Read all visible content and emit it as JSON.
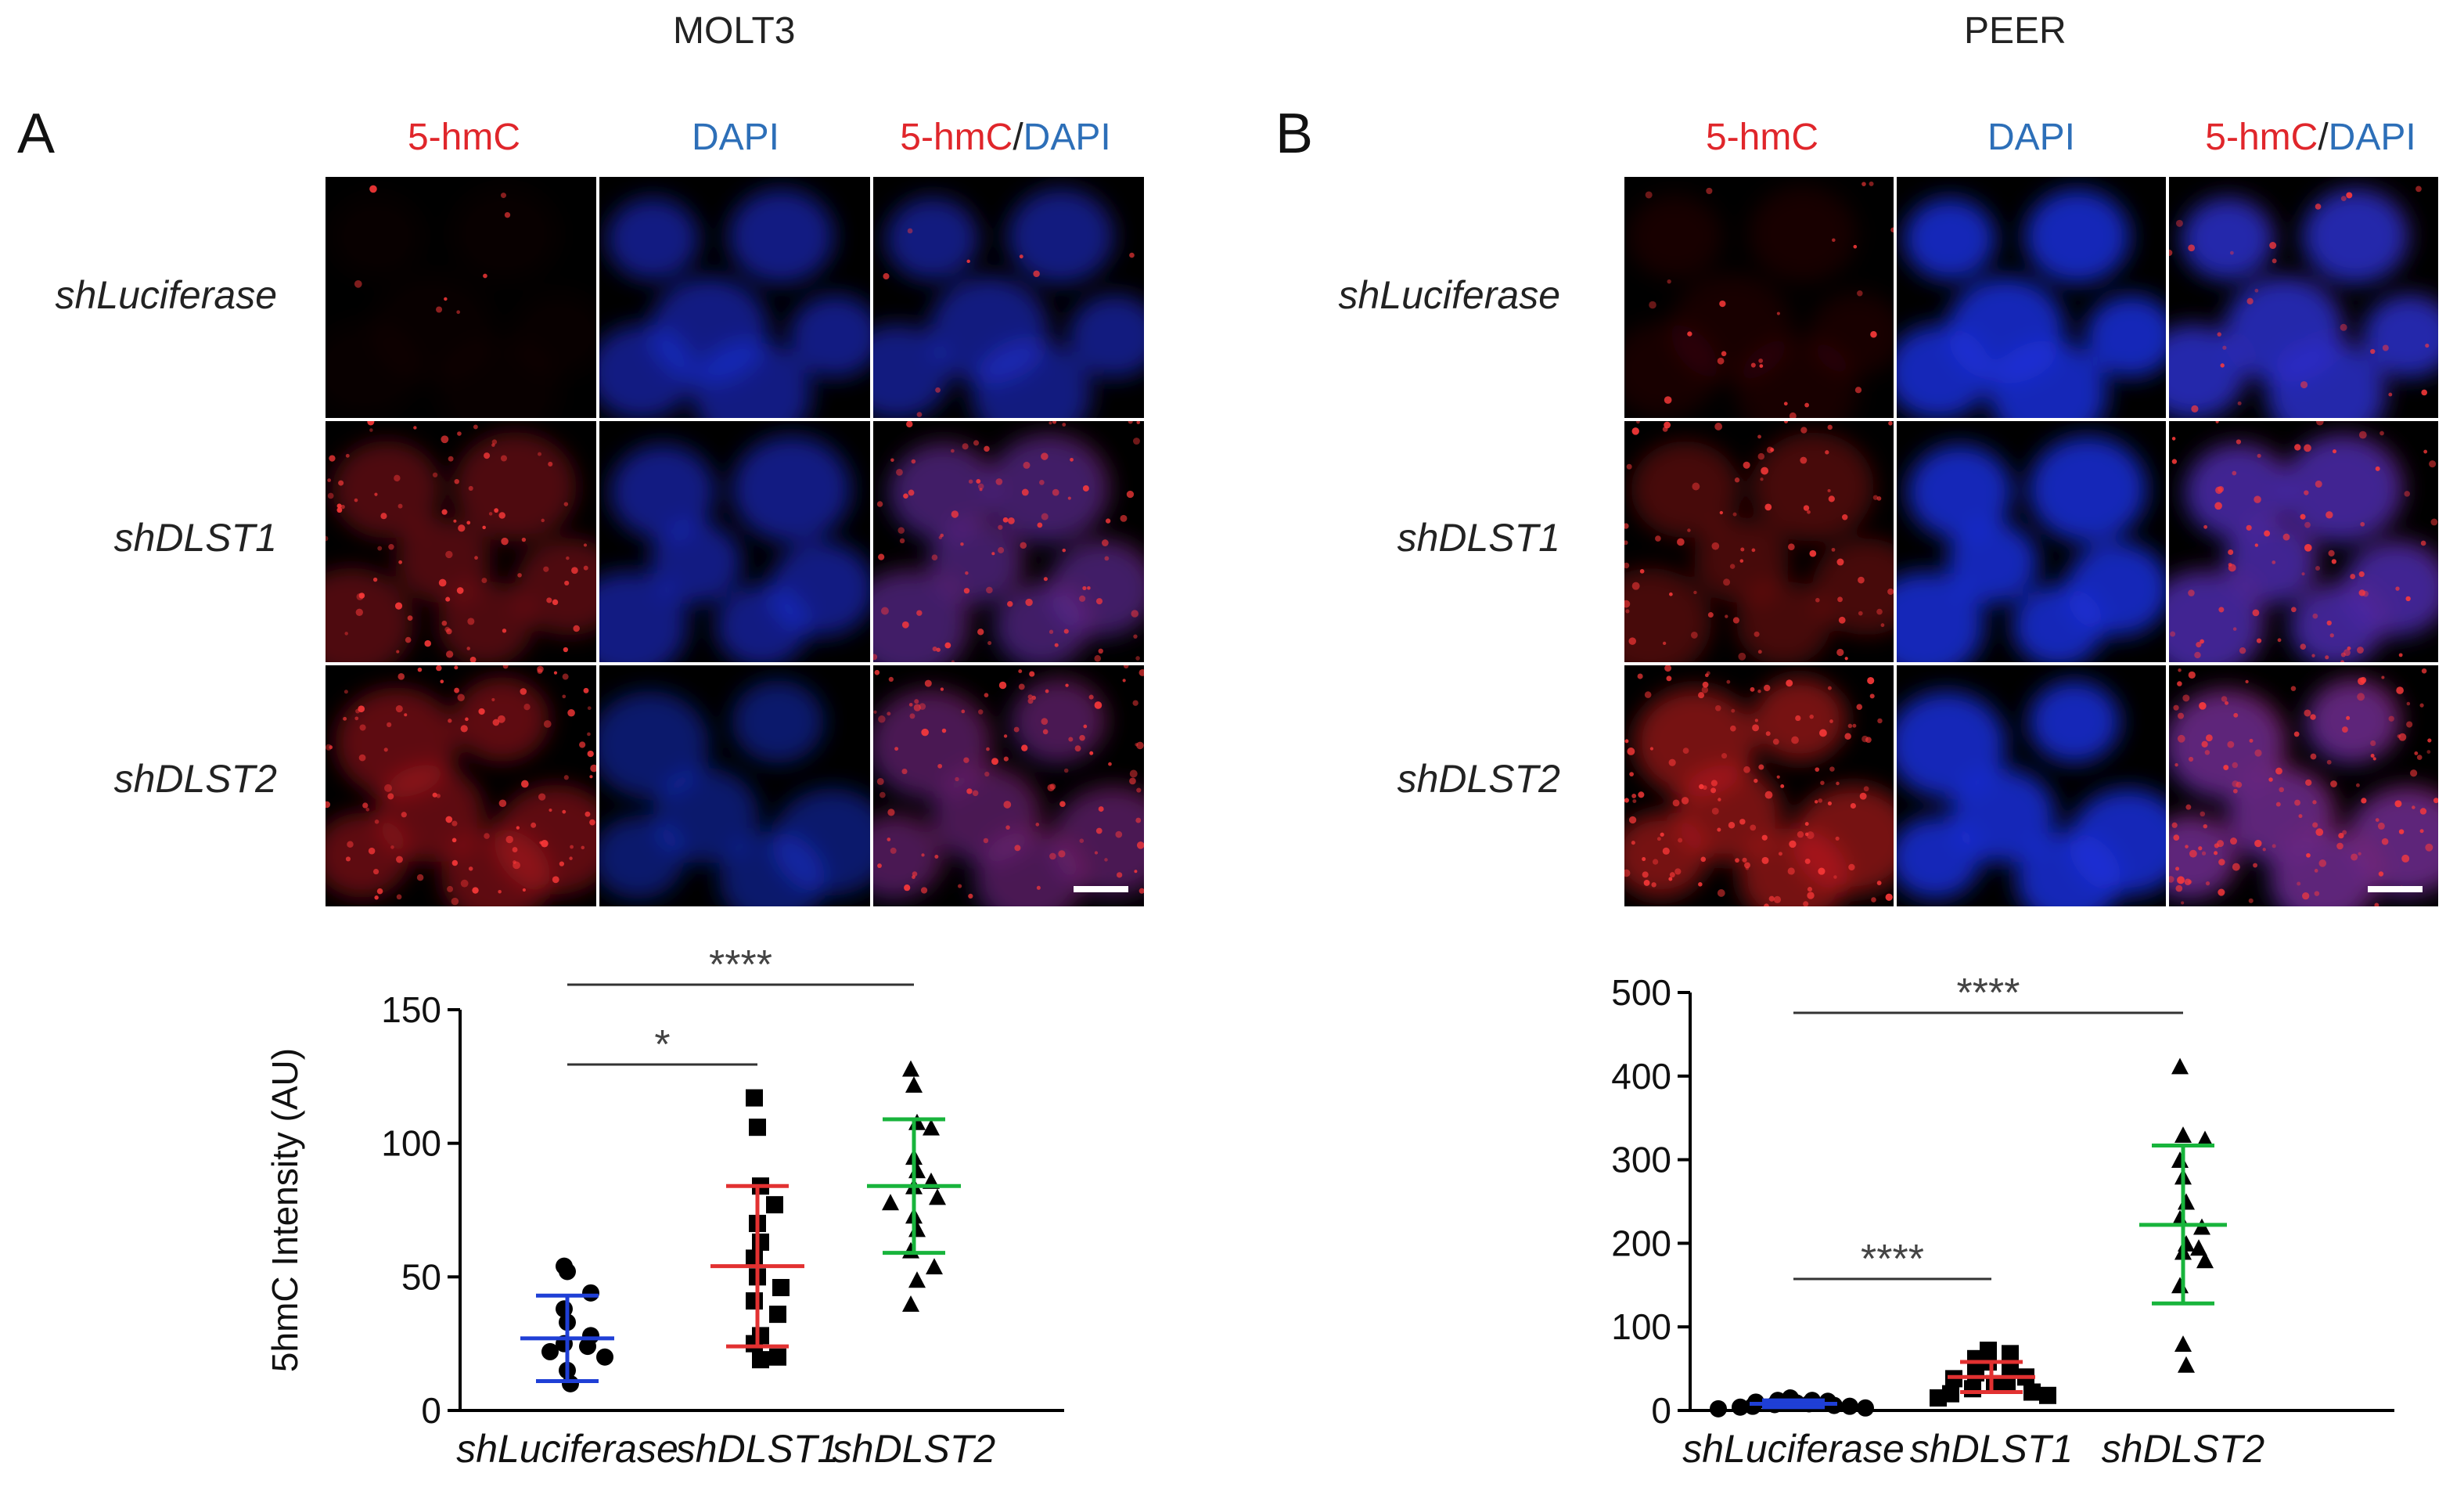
{
  "colors": {
    "red_channel": "#e0262b",
    "blue_channel": "#2d6fb8",
    "shLuciferase": "#1f3fd6",
    "shDLST1": "#e23131",
    "shDLST2": "#18b43c"
  },
  "panels": [
    {
      "letter": "A",
      "cell_line": "MOLT3",
      "column_headers": {
        "hmc": "5-hmC",
        "dapi": "DAPI",
        "merge_red": "5-hmC",
        "merge_sep": "/",
        "merge_blue": "DAPI"
      },
      "row_labels": [
        "shLuciferase",
        "shDLST1",
        "shDLST2"
      ],
      "images": [
        {
          "row": "shLuciferase",
          "channel": "5-hmC",
          "red_level": 0.05
        },
        {
          "row": "shLuciferase",
          "channel": "DAPI",
          "blue_level": 0.6
        },
        {
          "row": "shLuciferase",
          "channel": "5-hmC/DAPI",
          "red_level": 0.05,
          "blue_level": 0.6
        },
        {
          "row": "shDLST1",
          "channel": "5-hmC",
          "red_level": 0.5
        },
        {
          "row": "shDLST1",
          "channel": "DAPI",
          "blue_level": 0.6
        },
        {
          "row": "shDLST1",
          "channel": "5-hmC/DAPI",
          "red_level": 0.5,
          "blue_level": 0.6
        },
        {
          "row": "shDLST2",
          "channel": "5-hmC",
          "red_level": 0.6
        },
        {
          "row": "shDLST2",
          "channel": "DAPI",
          "blue_level": 0.5
        },
        {
          "row": "shDLST2",
          "channel": "5-hmC/DAPI",
          "red_level": 0.6,
          "blue_level": 0.5
        }
      ]
    },
    {
      "letter": "B",
      "cell_line": "PEER",
      "column_headers": {
        "hmc": "5-hmC",
        "dapi": "DAPI",
        "merge_red": "5-hmC",
        "merge_sep": "/",
        "merge_blue": "DAPI"
      },
      "row_labels": [
        "shLuciferase",
        "shDLST1",
        "shDLST2"
      ],
      "images": [
        {
          "row": "shLuciferase",
          "channel": "5-hmC",
          "red_level": 0.15
        },
        {
          "row": "shLuciferase",
          "channel": "DAPI",
          "blue_level": 0.85
        },
        {
          "row": "shLuciferase",
          "channel": "5-hmC/DAPI",
          "red_level": 0.15,
          "blue_level": 0.85
        },
        {
          "row": "shDLST1",
          "channel": "5-hmC",
          "red_level": 0.45
        },
        {
          "row": "shDLST1",
          "channel": "DAPI",
          "blue_level": 0.85
        },
        {
          "row": "shDLST1",
          "channel": "5-hmC/DAPI",
          "red_level": 0.45,
          "blue_level": 0.85
        },
        {
          "row": "shDLST2",
          "channel": "5-hmC",
          "red_level": 0.75
        },
        {
          "row": "shDLST2",
          "channel": "DAPI",
          "blue_level": 0.85
        },
        {
          "row": "shDLST2",
          "channel": "5-hmC/DAPI",
          "red_level": 0.75,
          "blue_level": 0.85
        }
      ]
    }
  ],
  "chart_data": [
    {
      "type": "scatter",
      "panel": "A",
      "ylabel": "5hmC  Intensity (AU)",
      "ylim": [
        0,
        150
      ],
      "yticks": [
        0,
        50,
        100,
        150
      ],
      "categories": [
        "shLuciferase",
        "shDLST1",
        "shDLST2"
      ],
      "series": [
        {
          "name": "shLuciferase",
          "marker": "circle",
          "values": [
            54,
            52,
            44,
            38,
            33,
            28,
            25,
            24,
            22,
            20,
            15,
            10
          ],
          "mean": 27,
          "sd_low": 11,
          "sd_high": 43
        },
        {
          "name": "shDLST1",
          "marker": "square",
          "values": [
            117,
            106,
            84,
            77,
            70,
            63,
            57,
            50,
            46,
            41,
            36,
            28,
            25,
            20,
            19
          ],
          "mean": 54,
          "sd_low": 24,
          "sd_high": 84
        },
        {
          "name": "shDLST2",
          "marker": "triangle",
          "values": [
            128,
            122,
            108,
            106,
            95,
            90,
            86,
            84,
            80,
            78,
            73,
            68,
            60,
            54,
            49,
            40
          ],
          "mean": 84,
          "sd_low": 59,
          "sd_high": 109
        }
      ],
      "significance": [
        {
          "from": "shLuciferase",
          "to": "shDLST2",
          "label": "****"
        },
        {
          "from": "shLuciferase",
          "to": "shDLST1",
          "label": "*"
        }
      ]
    },
    {
      "type": "scatter",
      "panel": "B",
      "ylabel": "",
      "ylim": [
        0,
        500
      ],
      "yticks": [
        0,
        100,
        200,
        300,
        400,
        500
      ],
      "categories": [
        "shLuciferase",
        "shDLST1",
        "shDLST2"
      ],
      "series": [
        {
          "name": "shLuciferase",
          "marker": "circle",
          "values": [
            15,
            12,
            12,
            11,
            10,
            9,
            8,
            7,
            6,
            5,
            5,
            4,
            3,
            2
          ],
          "mean": 8,
          "sd_low": 4,
          "sd_high": 12
        },
        {
          "name": "shDLST1",
          "marker": "square",
          "values": [
            72,
            68,
            62,
            58,
            50,
            45,
            40,
            38,
            32,
            30,
            26,
            22,
            20,
            18,
            15
          ],
          "mean": 40,
          "sd_low": 22,
          "sd_high": 58
        },
        {
          "name": "shDLST2",
          "marker": "triangle",
          "values": [
            412,
            330,
            325,
            300,
            280,
            250,
            230,
            220,
            200,
            195,
            190,
            180,
            150,
            80,
            55
          ],
          "mean": 222,
          "sd_low": 128,
          "sd_high": 317
        }
      ],
      "significance": [
        {
          "from": "shLuciferase",
          "to": "shDLST2",
          "label": "****"
        },
        {
          "from": "shLuciferase",
          "to": "shDLST1",
          "label": "****"
        }
      ]
    }
  ]
}
